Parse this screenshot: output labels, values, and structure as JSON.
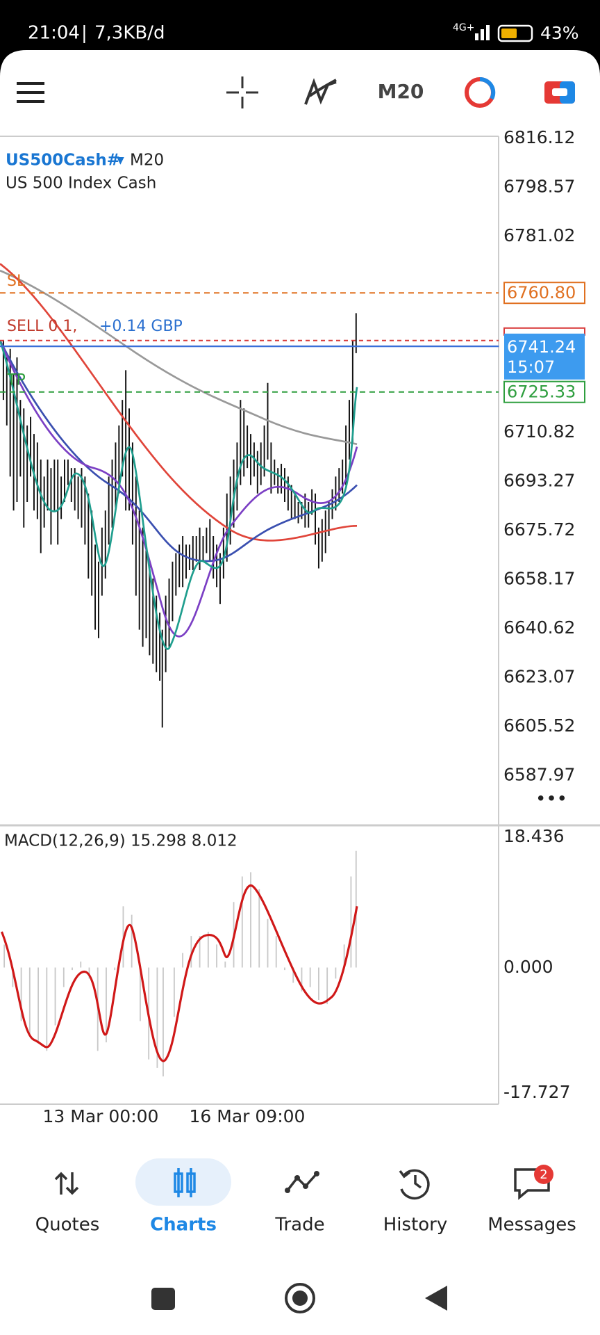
{
  "status_bar": {
    "time": "21:04",
    "speed": "7,3KB/d",
    "network": "4G+",
    "battery": "43%"
  },
  "toolbar": {
    "timeframe": "M20"
  },
  "chart": {
    "symbol": "US500Cash#",
    "timeframe": "M20",
    "description": "US 500 Index Cash",
    "price_axis": [
      "6816.12",
      "6798.57",
      "6781.02",
      "6710.82",
      "6693.27",
      "6675.72",
      "6658.17",
      "6640.62",
      "6623.07",
      "6605.52",
      "6587.97"
    ],
    "sl_label": "SL",
    "sl_price": "6760.80",
    "order_label": "SELL 0.1,",
    "order_profit": "+0.14 GBP",
    "tp_label": "TP",
    "tp_price": "6725.33",
    "current_price": "6741.24",
    "countdown": "15:07",
    "time_labels": [
      "13 Mar 00:00",
      "16 Mar 09:00"
    ]
  },
  "macd": {
    "label": "MACD(12,26,9) 15.298 8.012",
    "axis": [
      "18.436",
      "0.000",
      "-17.727"
    ]
  },
  "nav": {
    "items": [
      {
        "label": "Quotes"
      },
      {
        "label": "Charts"
      },
      {
        "label": "Trade"
      },
      {
        "label": "History"
      },
      {
        "label": "Messages"
      }
    ],
    "badge": "2"
  }
}
